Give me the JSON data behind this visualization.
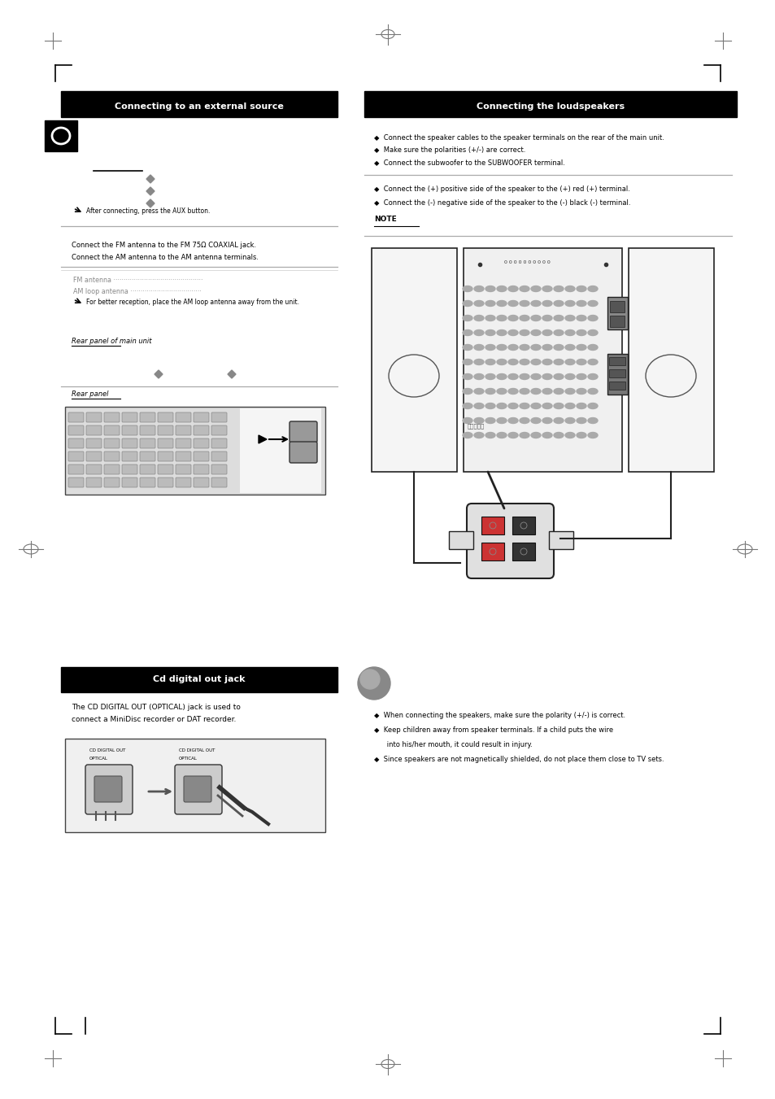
{
  "bg_color": "#ffffff",
  "left_header_text": "Connecting to an external source",
  "right_header_text": "Connecting the loudspeakers",
  "cd_header_text": "Cd digital out jack",
  "header_color": "#000000",
  "header_text_color": "#ffffff"
}
